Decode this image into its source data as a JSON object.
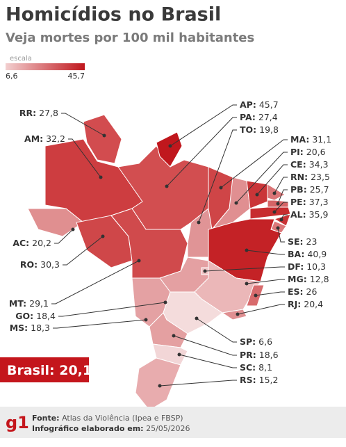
{
  "header": {
    "title": "Homicídios no Brasil",
    "subtitle": "Veja mortes por 100 mil habitantes"
  },
  "scale": {
    "label": "escala",
    "min": "6,6",
    "max": "45,7"
  },
  "states": [
    {
      "code": "RR:",
      "value": "27,8"
    },
    {
      "code": "AM:",
      "value": "32,2"
    },
    {
      "code": "AC:",
      "value": "20,2"
    },
    {
      "code": "RO:",
      "value": "30,3"
    },
    {
      "code": "MT:",
      "value": "29,1"
    },
    {
      "code": "GO:",
      "value": "18,4"
    },
    {
      "code": "MS:",
      "value": "18,3"
    },
    {
      "code": "AP:",
      "value": "45,7"
    },
    {
      "code": "PA:",
      "value": "27,4"
    },
    {
      "code": "TO:",
      "value": "19,8"
    },
    {
      "code": "MA:",
      "value": "31,1"
    },
    {
      "code": "PI:",
      "value": "20,6"
    },
    {
      "code": "CE:",
      "value": "34,3"
    },
    {
      "code": "RN:",
      "value": "23,5"
    },
    {
      "code": "PB:",
      "value": "25,7"
    },
    {
      "code": "PE:",
      "value": "37,3"
    },
    {
      "code": "AL:",
      "value": "35,9"
    },
    {
      "code": "SE:",
      "value": "23"
    },
    {
      "code": "BA:",
      "value": "40,9"
    },
    {
      "code": "DF:",
      "value": "10,3"
    },
    {
      "code": "MG:",
      "value": "12,8"
    },
    {
      "code": "ES:",
      "value": "26"
    },
    {
      "code": "RJ:",
      "value": "20,4"
    },
    {
      "code": "SP:",
      "value": "6,6"
    },
    {
      "code": "PR:",
      "value": "18,6"
    },
    {
      "code": "SC:",
      "value": "8,1"
    },
    {
      "code": "RS:",
      "value": "15,2"
    }
  ],
  "national": {
    "label": "Brasil:",
    "value": "20,1"
  },
  "footer": {
    "logo": "g1",
    "source_label": "Fonte:",
    "source": "Atlas da Violência (Ipea e FBSP)",
    "date_label": "Infográfico elaborado em:",
    "date": "25/05/2026"
  }
}
